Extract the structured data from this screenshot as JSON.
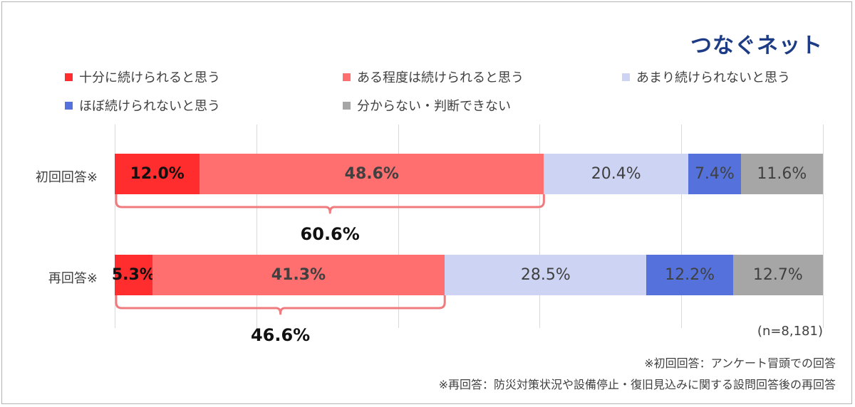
{
  "brand": "つなぐネット",
  "legend": [
    {
      "label": "十分に続けられると思う",
      "color": "#ff2d2d"
    },
    {
      "label": "ある程度は続けられると思う",
      "color": "#ff6f6f"
    },
    {
      "label": "あまり続けられないと思う",
      "color": "#cdd3f3"
    },
    {
      "label": "ほぼ続けられないと思う",
      "color": "#5572dc"
    },
    {
      "label": "分からない・判断できない",
      "color": "#a6a6a6"
    }
  ],
  "chart_data": {
    "type": "bar",
    "orientation": "horizontal",
    "stacked": true,
    "percent": true,
    "xlim": [
      0,
      100
    ],
    "grid": true,
    "legend_position": "top",
    "categories": [
      "初回回答※",
      "再回答※"
    ],
    "series": [
      {
        "name": "十分に続けられると思う",
        "values": [
          12.0,
          5.3
        ],
        "labels": [
          "12.0%",
          "5.3%"
        ],
        "color": "#ff2d2d",
        "text_color": "#111111",
        "bold": true
      },
      {
        "name": "ある程度は続けられると思う",
        "values": [
          48.6,
          41.3
        ],
        "labels": [
          "48.6%",
          "41.3%"
        ],
        "color": "#ff6f6f",
        "text_color": "#404040",
        "bold": true
      },
      {
        "name": "あまり続けられないと思う",
        "values": [
          20.4,
          28.5
        ],
        "labels": [
          "20.4%",
          "28.5%"
        ],
        "color": "#cdd3f3",
        "text_color": "#404040",
        "bold": false
      },
      {
        "name": "ほぼ続けられないと思う",
        "values": [
          7.4,
          12.2
        ],
        "labels": [
          "7.4%",
          "12.2%"
        ],
        "color": "#5572dc",
        "text_color": "#404040",
        "bold": false
      },
      {
        "name": "分からない・判断できない",
        "values": [
          11.6,
          12.7
        ],
        "labels": [
          "11.6%",
          "12.7%"
        ],
        "color": "#a6a6a6",
        "text_color": "#404040",
        "bold": false
      }
    ],
    "group_totals": [
      {
        "label": "60.6%",
        "value": 60.6
      },
      {
        "label": "46.6%",
        "value": 46.6
      }
    ]
  },
  "sample_size": "(n=8,181)",
  "notes": [
    "※初回回答：アンケート冒頭での回答",
    "※再回答：防災対策状況や設備停止・復旧見込みに関する設問回答後の再回答"
  ],
  "brace_color": "#f07b7f"
}
